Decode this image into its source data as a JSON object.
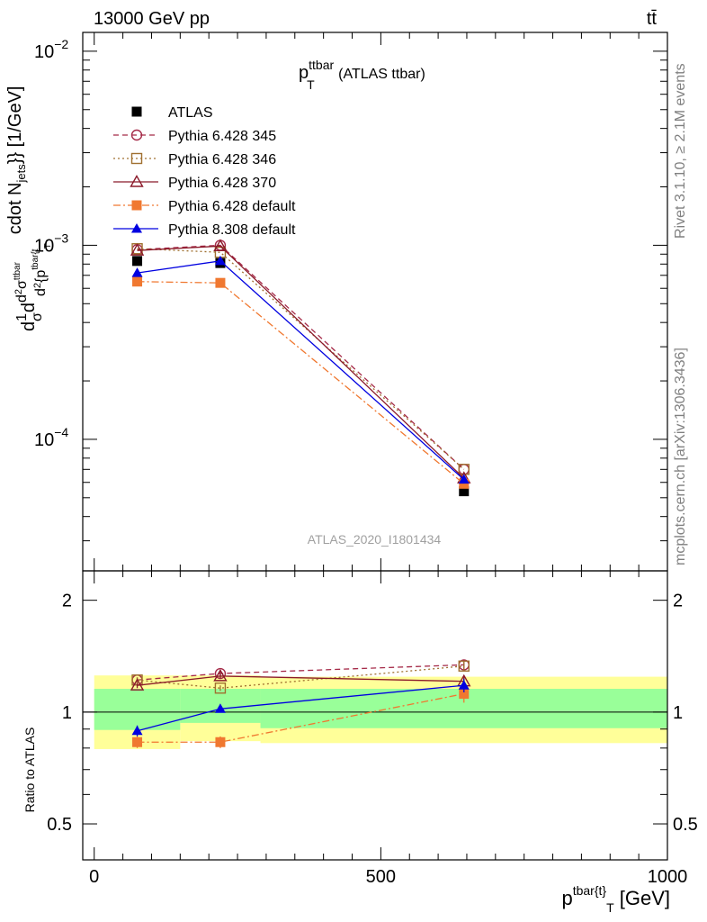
{
  "header": {
    "left": "13000 GeV pp",
    "right": "tt̄",
    "side_rivet": "Rivet 3.1.10, ≥ 2.1M events",
    "side_mcplots": "mcplots.cern.ch [arXiv:1306.3436]"
  },
  "chart_data": [
    {
      "type": "line",
      "title_main": "p",
      "title_sup": "ttbar",
      "title_sub": "T",
      "title_rest": " (ATLAS ttbar)",
      "watermark": "ATLAS_2020_I1801434",
      "yscale": "log",
      "ylim": [
        2.1e-05,
        0.0125
      ],
      "xlim": [
        -20,
        1000
      ],
      "ylabel_parts": [
        "d",
        "1",
        "σ",
        "d",
        "d",
        "2",
        "σ",
        "ttbar",
        "d",
        "2",
        "{p",
        "tbar{t",
        "T",
        "cdot N",
        "jets",
        "}} [1/GeV]"
      ],
      "ytick_labels": [
        {
          "value": 0.01,
          "base": "10",
          "exp": "−2"
        },
        {
          "value": 0.001,
          "base": "10",
          "exp": "−3"
        },
        {
          "value": 0.0001,
          "base": "10",
          "exp": "−4"
        }
      ],
      "legend_placement": "top-left",
      "series": [
        {
          "name": "ATLAS",
          "color": "#000000",
          "marker": "square-filled",
          "line": "none",
          "x": [
            75,
            220,
            645
          ],
          "y": [
            0.00083,
            0.00081,
            5.4e-05
          ]
        },
        {
          "name": "Pythia 6.428 345",
          "color": "#a52a48",
          "marker": "circle-open",
          "line": "dashed",
          "x": [
            75,
            220,
            645
          ],
          "y": [
            0.00095,
            0.001,
            7e-05
          ]
        },
        {
          "name": "Pythia 6.428 346",
          "color": "#a07030",
          "marker": "square-open",
          "line": "dotted",
          "x": [
            75,
            220,
            645
          ],
          "y": [
            0.00096,
            0.00092,
            7e-05
          ]
        },
        {
          "name": "Pythia 6.428 370",
          "color": "#8b1a2a",
          "marker": "triangle-open",
          "line": "solid",
          "x": [
            75,
            220,
            645
          ],
          "y": [
            0.00094,
            0.00099,
            6.3e-05
          ]
        },
        {
          "name": "Pythia 6.428 default",
          "color": "#f07830",
          "marker": "square-filled",
          "line": "dashdot",
          "x": [
            75,
            220,
            645
          ],
          "y": [
            0.00065,
            0.00064,
            5.9e-05
          ]
        },
        {
          "name": "Pythia 8.308 default",
          "color": "#0000e0",
          "marker": "triangle-filled",
          "line": "solid",
          "x": [
            75,
            220,
            645
          ],
          "y": [
            0.00072,
            0.00083,
            6.2e-05
          ]
        }
      ]
    },
    {
      "type": "line",
      "yscale": "log",
      "ylabel": "Ratio to ATLAS",
      "xlabel_main": "p",
      "xlabel_sup": "tbar{t}",
      "xlabel_sub": "T",
      "xlabel_rest": " [GeV]",
      "ylim": [
        0.4,
        2.4
      ],
      "xlim": [
        -20,
        1000
      ],
      "xtick_labels": [
        {
          "value": 0,
          "label": "0"
        },
        {
          "value": 500,
          "label": "500"
        },
        {
          "value": 1000,
          "label": "1000"
        }
      ],
      "ytick_labels": [
        {
          "value": 0.5,
          "label": "0.5"
        },
        {
          "value": 1,
          "label": "1"
        },
        {
          "value": 2,
          "label": "2"
        }
      ],
      "bands": [
        {
          "x0": 0,
          "x1": 150,
          "yellow": [
            0.795,
            1.255
          ],
          "green": [
            0.895,
            1.155
          ]
        },
        {
          "x0": 150,
          "x1": 290,
          "yellow": [
            0.835,
            1.255
          ],
          "green": [
            0.935,
            1.155
          ]
        },
        {
          "x0": 290,
          "x1": 1000,
          "yellow": [
            0.825,
            1.245
          ],
          "green": [
            0.905,
            1.155
          ]
        }
      ],
      "series": [
        {
          "name": "Pythia 6.428 345",
          "x": [
            75,
            220,
            645
          ],
          "y": [
            1.22,
            1.27,
            1.34
          ],
          "yerr": [
            0.02,
            0.02,
            0.04
          ]
        },
        {
          "name": "Pythia 6.428 346",
          "x": [
            75,
            220,
            645
          ],
          "y": [
            1.22,
            1.16,
            1.33
          ],
          "yerr": [
            0.02,
            0.02,
            0.04
          ]
        },
        {
          "name": "Pythia 6.428 370",
          "x": [
            75,
            220,
            645
          ],
          "y": [
            1.18,
            1.25,
            1.21
          ],
          "yerr": [
            0.02,
            0.02,
            0.04
          ]
        },
        {
          "name": "Pythia 6.428 default",
          "x": [
            75,
            220,
            645
          ],
          "y": [
            0.83,
            0.83,
            1.12
          ],
          "yerr": [
            0.03,
            0.03,
            0.06
          ]
        },
        {
          "name": "Pythia 8.308 default",
          "x": [
            75,
            220,
            645
          ],
          "y": [
            0.89,
            1.02,
            1.18
          ],
          "yerr": [
            0.03,
            0.02,
            0.05
          ]
        }
      ]
    }
  ]
}
